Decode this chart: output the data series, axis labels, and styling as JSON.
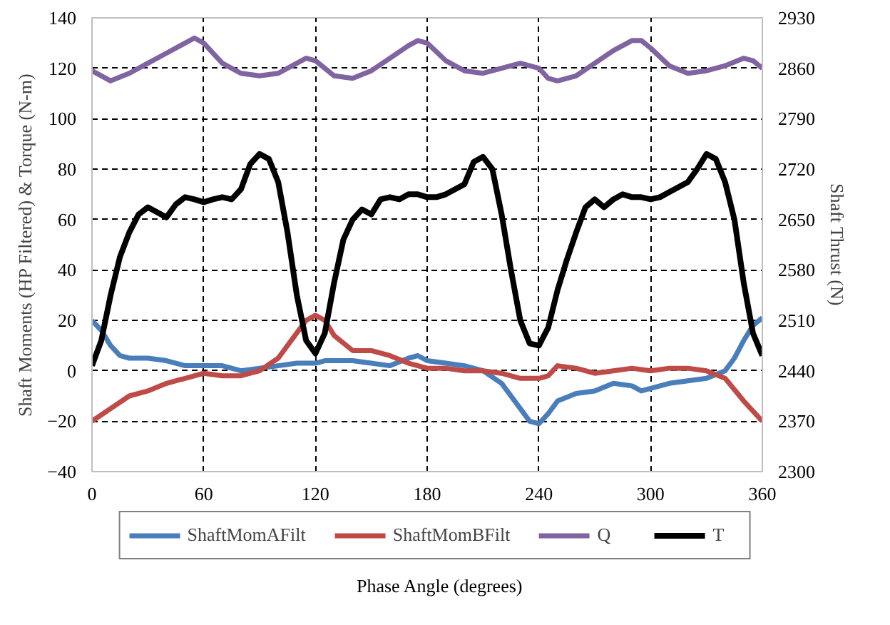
{
  "chart_data": {
    "type": "line",
    "xlabel": "Phase Angle (degrees)",
    "ylabel": "Shaft Moments (HP Filtered) & Torque (N-m)",
    "y2label": "Shaft Thrust (N)",
    "xlim": [
      0,
      360
    ],
    "xticks": [
      0,
      60,
      120,
      180,
      240,
      300,
      360
    ],
    "ylim": [
      -40,
      140
    ],
    "yticks": [
      -40,
      -20,
      0,
      20,
      40,
      60,
      80,
      100,
      120,
      140
    ],
    "y2lim": [
      2300,
      2930
    ],
    "y2ticks": [
      2300,
      2370,
      2440,
      2510,
      2580,
      2650,
      2720,
      2790,
      2860,
      2930
    ],
    "grid": true,
    "legend": "bottom",
    "marker": "none",
    "line_style": "solid",
    "series": [
      {
        "name": "ShaftMomAFilt",
        "color": "#4a7ebb",
        "x": [
          0,
          5,
          10,
          15,
          20,
          30,
          40,
          50,
          60,
          70,
          80,
          90,
          100,
          110,
          120,
          125,
          130,
          140,
          150,
          160,
          170,
          175,
          180,
          190,
          200,
          210,
          220,
          230,
          235,
          240,
          245,
          250,
          260,
          270,
          280,
          290,
          295,
          300,
          310,
          320,
          330,
          340,
          345,
          350,
          355,
          360
        ],
        "values": [
          20,
          16,
          10,
          6,
          5,
          5,
          4,
          2,
          2,
          2,
          0,
          1,
          2,
          3,
          3,
          4,
          4,
          4,
          3,
          2,
          5,
          6,
          4,
          3,
          2,
          0,
          -5,
          -15,
          -20,
          -21,
          -17,
          -12,
          -9,
          -8,
          -5,
          -6,
          -8,
          -7,
          -5,
          -4,
          -3,
          0,
          5,
          12,
          18,
          21
        ]
      },
      {
        "name": "ShaftMomBFilt",
        "color": "#be4b48",
        "x": [
          0,
          10,
          20,
          30,
          40,
          50,
          60,
          70,
          80,
          90,
          100,
          110,
          115,
          120,
          125,
          130,
          140,
          150,
          160,
          170,
          180,
          190,
          200,
          210,
          220,
          230,
          240,
          245,
          250,
          260,
          270,
          280,
          290,
          300,
          310,
          320,
          330,
          340,
          350,
          360
        ],
        "values": [
          -20,
          -15,
          -10,
          -8,
          -5,
          -3,
          -1,
          -2,
          -2,
          0,
          5,
          15,
          20,
          22,
          20,
          14,
          8,
          8,
          6,
          3,
          1,
          1,
          0,
          0,
          -1,
          -3,
          -3,
          -2,
          2,
          1,
          -1,
          0,
          1,
          0,
          1,
          1,
          0,
          -3,
          -12,
          -20
        ]
      },
      {
        "name": "Q",
        "color": "#8064a2",
        "x": [
          0,
          10,
          20,
          30,
          40,
          50,
          55,
          60,
          70,
          80,
          90,
          100,
          110,
          115,
          120,
          130,
          140,
          150,
          160,
          170,
          175,
          180,
          190,
          200,
          210,
          220,
          230,
          240,
          245,
          250,
          260,
          270,
          280,
          290,
          295,
          300,
          310,
          320,
          330,
          340,
          350,
          355,
          360
        ],
        "values": [
          119,
          115,
          118,
          122,
          126,
          130,
          132,
          130,
          122,
          118,
          117,
          118,
          122,
          124,
          123,
          117,
          116,
          119,
          124,
          129,
          131,
          130,
          123,
          119,
          118,
          120,
          122,
          120,
          116,
          115,
          117,
          122,
          127,
          131,
          131,
          128,
          121,
          118,
          119,
          121,
          124,
          123,
          120
        ]
      },
      {
        "name": "T",
        "color": "#000000",
        "axis": "y2",
        "x": [
          0,
          5,
          10,
          15,
          20,
          25,
          30,
          35,
          40,
          45,
          50,
          55,
          60,
          65,
          70,
          75,
          80,
          85,
          90,
          95,
          100,
          105,
          110,
          115,
          120,
          125,
          130,
          135,
          140,
          145,
          150,
          155,
          160,
          165,
          170,
          175,
          180,
          185,
          190,
          195,
          200,
          205,
          210,
          215,
          220,
          225,
          230,
          235,
          240,
          245,
          250,
          255,
          260,
          265,
          270,
          275,
          280,
          285,
          290,
          295,
          300,
          305,
          310,
          315,
          320,
          325,
          330,
          335,
          340,
          345,
          350,
          355,
          360
        ],
        "values": [
          2447,
          2482,
          2545,
          2598,
          2632,
          2657,
          2667,
          2660,
          2653,
          2671,
          2681,
          2678,
          2674,
          2678,
          2681,
          2678,
          2692,
          2727,
          2741,
          2734,
          2702,
          2632,
          2545,
          2482,
          2464,
          2492,
          2562,
          2622,
          2650,
          2664,
          2657,
          2678,
          2681,
          2678,
          2685,
          2685,
          2681,
          2681,
          2685,
          2692,
          2699,
          2730,
          2737,
          2720,
          2657,
          2580,
          2510,
          2478,
          2475,
          2500,
          2552,
          2594,
          2632,
          2667,
          2678,
          2667,
          2678,
          2685,
          2681,
          2681,
          2678,
          2681,
          2688,
          2695,
          2702,
          2720,
          2741,
          2734,
          2702,
          2650,
          2562,
          2492,
          2461
        ]
      }
    ]
  }
}
